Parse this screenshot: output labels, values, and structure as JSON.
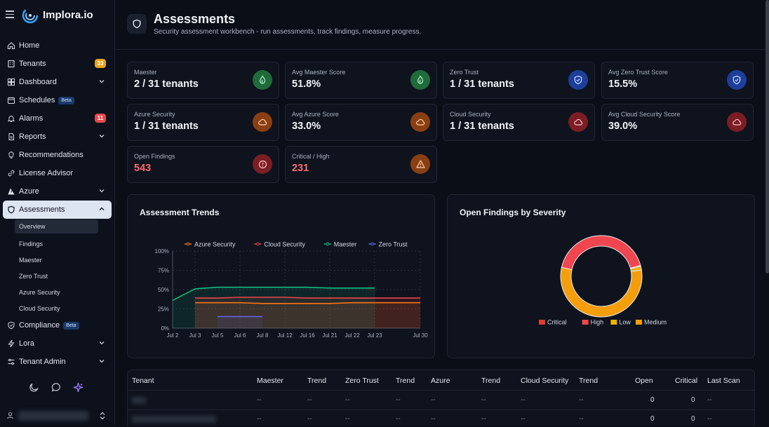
{
  "brand": {
    "name": "Implora.io"
  },
  "nav": {
    "home": "Home",
    "tenants": "Tenants",
    "tenants_count": "33",
    "dashboard": "Dashboard",
    "schedules": "Schedules",
    "schedules_badge": "Beta",
    "alarms": "Alarms",
    "alarms_count": "11",
    "reports": "Reports",
    "recommendations": "Recommendations",
    "license_advisor": "License Advisor",
    "azure": "Azure",
    "assessments": "Assessments",
    "sub": {
      "overview": "Overview",
      "findings": "Findings",
      "maester": "Maester",
      "zero_trust": "Zero Trust",
      "azure_security": "Azure Security",
      "cloud_security": "Cloud Security"
    },
    "compliance": "Compliance",
    "compliance_badge": "Beta",
    "lora": "Lora",
    "tenant_admin": "Tenant Admin"
  },
  "header": {
    "title": "Assessments",
    "subtitle": "Security assessment workbench - run assessments, track findings, measure progress."
  },
  "stats": [
    {
      "label": "Maester",
      "value": "2 / 31 tenants"
    },
    {
      "label": "Avg Maester Score",
      "value": "51.8%"
    },
    {
      "label": "Zero Trust",
      "value": "1 / 31 tenants"
    },
    {
      "label": "Avg Zero Trust Score",
      "value": "15.5%"
    },
    {
      "label": "Azure Security",
      "value": "1 / 31 tenants"
    },
    {
      "label": "Avg Azure Score",
      "value": "33.0%"
    },
    {
      "label": "Cloud Security",
      "value": "1 / 31 tenants"
    },
    {
      "label": "Avg Cloud Security Score",
      "value": "39.0%"
    },
    {
      "label": "Open Findings",
      "value": "543"
    },
    {
      "label": "Critical / High",
      "value": "231"
    }
  ],
  "trends": {
    "title": "Assessment Trends",
    "chart_data": {
      "type": "line",
      "x": [
        "Jul 2",
        "Jul 3",
        "Jul 5",
        "Jul 6",
        "Jul 8",
        "Jul 12",
        "Jul 16",
        "Jul 21",
        "Jul 22",
        "Jul 23",
        "Jul 30"
      ],
      "ylim": [
        0,
        100
      ],
      "yticks": [
        "100%",
        "75%",
        "50%",
        "25%",
        "0%"
      ],
      "legend_position": "top",
      "series": [
        {
          "name": "Azure Security",
          "color": "#f97316",
          "values": [
            null,
            33,
            33,
            33,
            32,
            32,
            32,
            32,
            33,
            33,
            33
          ]
        },
        {
          "name": "Cloud Security",
          "color": "#ef4444",
          "values": [
            null,
            39,
            39,
            40,
            40,
            40,
            39,
            39,
            39,
            39,
            39
          ]
        },
        {
          "name": "Maester",
          "color": "#10b981",
          "values": [
            36,
            51,
            53,
            53,
            53,
            53,
            53,
            52,
            52,
            52,
            null
          ]
        },
        {
          "name": "Zero Trust",
          "color": "#6366f1",
          "values": [
            null,
            null,
            15,
            15,
            15,
            null,
            null,
            null,
            null,
            null,
            null
          ]
        }
      ]
    }
  },
  "severity": {
    "title": "Open Findings by Severity",
    "chart_data": {
      "type": "pie",
      "categories": [
        "Critical",
        "High",
        "Low",
        "Medium"
      ],
      "values": [
        2,
        229,
        8,
        304
      ],
      "colors": [
        "#e53935",
        "#f0464f",
        "#eab308",
        "#f59e0b"
      ],
      "legend_position": "bottom"
    }
  },
  "table": {
    "columns": [
      "Tenant",
      "Maester",
      "Trend",
      "Zero Trust",
      "Trend",
      "Azure",
      "Trend",
      "Cloud Security",
      "Trend",
      "Open",
      "Critical",
      "Last Scan"
    ],
    "rows": [
      {
        "cells": [
          "--",
          "--",
          "--",
          "--",
          "--",
          "--",
          "--",
          "--",
          "0",
          "0",
          "--"
        ]
      },
      {
        "cells": [
          "--",
          "--",
          "--",
          "--",
          "--",
          "--",
          "--",
          "--",
          "0",
          "0",
          "--"
        ]
      }
    ]
  }
}
